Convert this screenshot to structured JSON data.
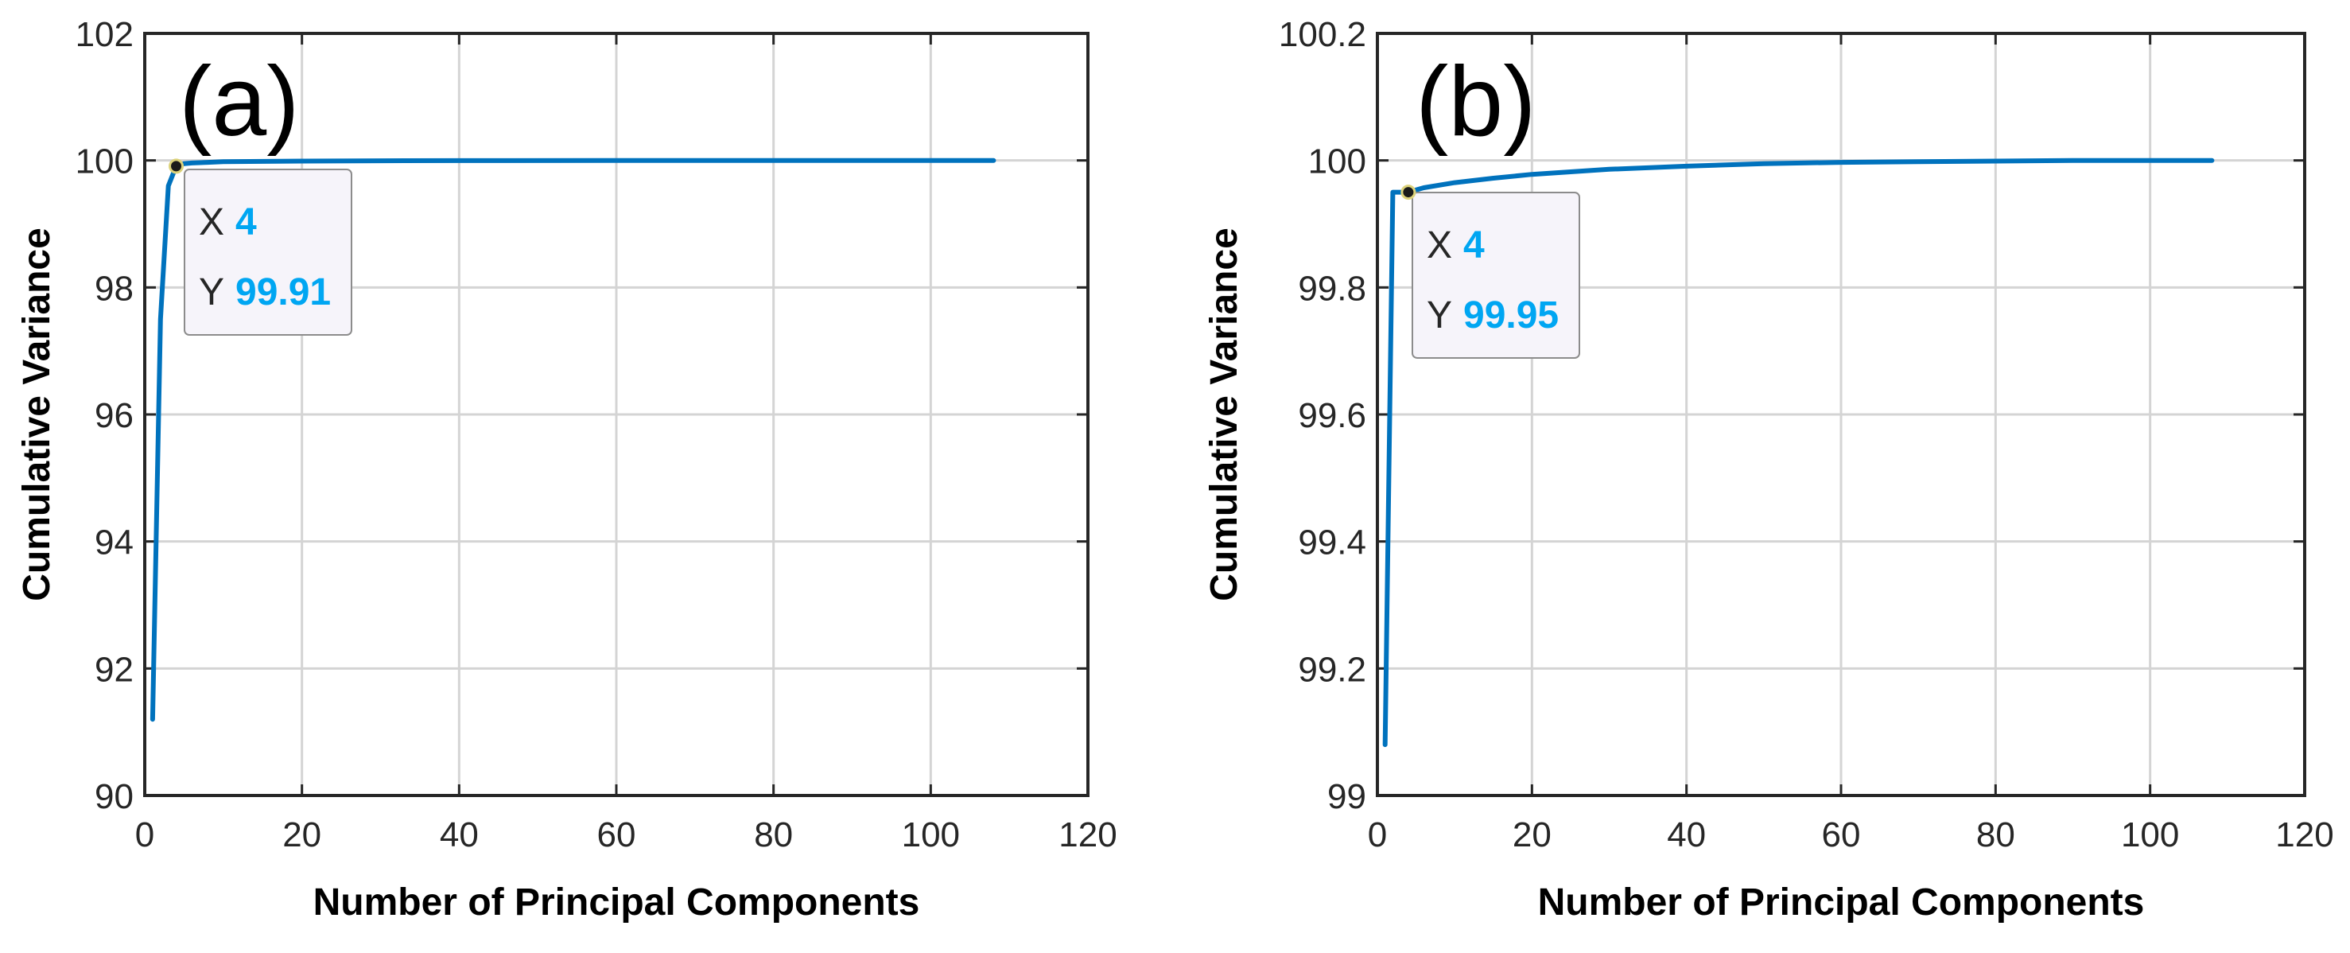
{
  "colors": {
    "line": "#0072BD",
    "grid": "#d4d4d4",
    "datatip_value": "#00a6f2",
    "datatip_bg": "#f6f4fa",
    "datatip_border": "#8c8c8c",
    "marker_fill": "#1a1a1a",
    "marker_ring": "#dcd27a"
  },
  "chart_data": [
    {
      "type": "line",
      "panel_label": "(a)",
      "xlabel": "Number of Principal Components",
      "ylabel": "Cumulative Variance",
      "xlim": [
        0,
        120
      ],
      "ylim": [
        90,
        102
      ],
      "x_ticks": [
        0,
        20,
        40,
        60,
        80,
        100,
        120
      ],
      "x_tick_labels": [
        "0",
        "20",
        "40",
        "60",
        "80",
        "100",
        "120"
      ],
      "y_ticks": [
        90,
        92,
        94,
        96,
        98,
        100,
        102
      ],
      "y_tick_labels": [
        "90",
        "92",
        "94",
        "96",
        "98",
        "100",
        "102"
      ],
      "grid": true,
      "series": [
        {
          "x": [
            1,
            2,
            3,
            4,
            5,
            6,
            8,
            10,
            15,
            20,
            30,
            40,
            60,
            80,
            100,
            108
          ],
          "values": [
            91.2,
            97.5,
            99.6,
            99.91,
            99.95,
            99.96,
            99.97,
            99.98,
            99.985,
            99.99,
            99.995,
            99.997,
            99.999,
            100.0,
            100.0,
            100.0
          ]
        }
      ],
      "datatip": {
        "x_key": "X",
        "x_value": "4",
        "y_key": "Y",
        "y_value": "99.91",
        "x": 4,
        "y": 99.91
      }
    },
    {
      "type": "line",
      "panel_label": "(b)",
      "xlabel": "Number of Principal Components",
      "ylabel": "Cumulative Variance",
      "xlim": [
        0,
        120
      ],
      "ylim": [
        99,
        100.2
      ],
      "x_ticks": [
        0,
        20,
        40,
        60,
        80,
        100,
        120
      ],
      "x_tick_labels": [
        "0",
        "20",
        "40",
        "60",
        "80",
        "100",
        "120"
      ],
      "y_ticks": [
        99,
        99.2,
        99.4,
        99.6,
        99.8,
        100,
        100.2
      ],
      "y_tick_labels": [
        "99",
        "99.2",
        "99.4",
        "99.6",
        "99.8",
        "100",
        "100.2"
      ],
      "grid": true,
      "series": [
        {
          "x": [
            1,
            2,
            3,
            4,
            6,
            10,
            15,
            20,
            30,
            40,
            50,
            60,
            70,
            80,
            90,
            100,
            108
          ],
          "values": [
            99.08,
            99.95,
            99.95,
            99.95,
            99.957,
            99.965,
            99.972,
            99.978,
            99.986,
            99.991,
            99.995,
            99.997,
            99.998,
            99.999,
            100.0,
            100.0,
            100.0
          ]
        }
      ],
      "datatip": {
        "x_key": "X",
        "x_value": "4",
        "y_key": "Y",
        "y_value": "99.95",
        "x": 4,
        "y": 99.95
      }
    }
  ]
}
